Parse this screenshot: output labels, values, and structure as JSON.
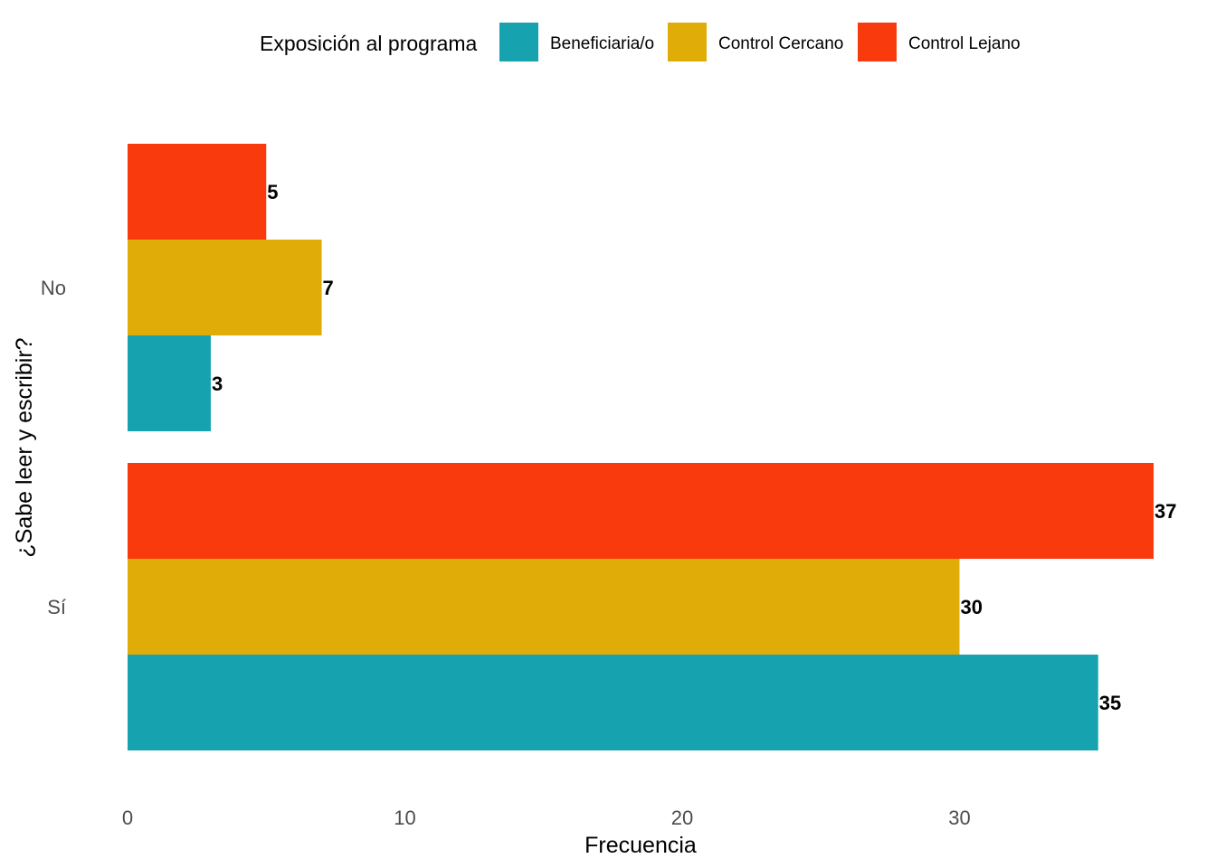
{
  "chart_data": {
    "type": "bar",
    "orientation": "horizontal",
    "categories": [
      "No",
      "Sí"
    ],
    "series": [
      {
        "name": "Beneficiaria/o",
        "values": [
          3,
          35
        ],
        "color": "#17A2B0"
      },
      {
        "name": "Control Cercano",
        "values": [
          7,
          30
        ],
        "color": "#E0AC08"
      },
      {
        "name": "Control Lejano",
        "values": [
          5,
          37
        ],
        "color": "#F93A0D"
      }
    ],
    "xlabel": "Frecuencia",
    "ylabel": "¿Sabe leer y escribir?",
    "xticks": [
      0,
      10,
      20,
      30
    ],
    "xlim": [
      0,
      37
    ],
    "legend_title": "Exposición al programa",
    "legend_position": "top",
    "grid": false,
    "data_labels": true
  }
}
